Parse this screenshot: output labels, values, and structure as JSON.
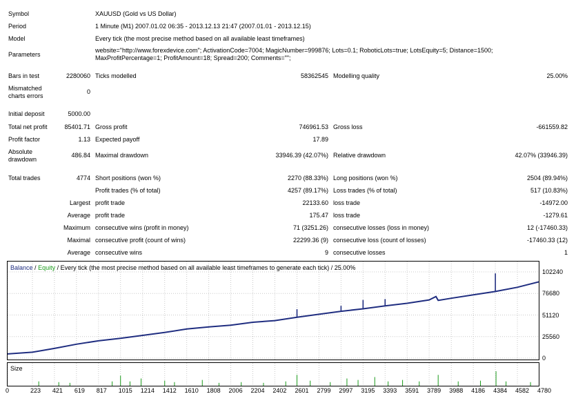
{
  "report": {
    "symbol_label": "Symbol",
    "symbol_value": "XAUUSD (Gold vs US Dollar)",
    "period_label": "Period",
    "period_value": "1 Minute (M1) 2007.01.02 06:35 - 2013.12.13 21:47 (2007.01.01 - 2013.12.15)",
    "model_label": "Model",
    "model_value": "Every tick (the most precise method based on all available least timeframes)",
    "parameters_label": "Parameters",
    "parameters_line1": "website=\"http://www.forexdevice.com\"; ActivationCode=7004; MagicNumber=999876; Lots=0.1; RoboticLots=true; LotsEquity=5; Distance=1500;",
    "parameters_line2": "MaxProfitPercentage=1; ProfitAmount=18; Spread=200; Comments=\"\";",
    "bars_label": "Bars in test",
    "bars_value": "2280060",
    "ticks_label": "Ticks modelled",
    "ticks_value": "58362545",
    "quality_label": "Modelling quality",
    "quality_value": "25.00%",
    "mismatch_label_1": "Mismatched",
    "mismatch_label_2": "charts errors",
    "mismatch_value": "0",
    "deposit_label": "Initial deposit",
    "deposit_value": "5000.00",
    "netprofit_label": "Total net profit",
    "netprofit_value": "85401.71",
    "grossprofit_label": "Gross profit",
    "grossprofit_value": "746961.53",
    "grossloss_label": "Gross loss",
    "grossloss_value": "-661559.82",
    "pf_label": "Profit factor",
    "pf_value": "1.13",
    "payoff_label": "Expected payoff",
    "payoff_value": "17.89",
    "absdd_label_1": "Absolute",
    "absdd_label_2": "drawdown",
    "absdd_value": "486.84",
    "maxdd_label": "Maximal drawdown",
    "maxdd_value": "33946.39 (42.07%)",
    "reldd_label": "Relative drawdown",
    "reldd_value": "42.07% (33946.39)",
    "trades_label": "Total trades",
    "trades_value": "4774",
    "short_label": "Short positions (won %)",
    "short_value": "2270 (88.33%)",
    "long_label": "Long positions (won %)",
    "long_value": "2504 (89.94%)",
    "ptrades_label": "Profit trades (% of total)",
    "ptrades_value": "4257 (89.17%)",
    "ltrades_label": "Loss trades (% of total)",
    "ltrades_value": "517 (10.83%)",
    "largest_label": "Largest",
    "largest_profit_label": "profit trade",
    "largest_profit_value": "22133.60",
    "largest_loss_label": "loss trade",
    "largest_loss_value": "-14972.00",
    "average_label": "Average",
    "average_profit_label": "profit trade",
    "average_profit_value": "175.47",
    "average_loss_label": "loss trade",
    "average_loss_value": "-1279.61",
    "maximum_label": "Maximum",
    "maxwins_label": "consecutive wins (profit in money)",
    "maxwins_value": "71 (3251.26)",
    "maxlosses_label": "consecutive losses (loss in money)",
    "maxlosses_value": "12 (-17460.33)",
    "maximal_label": "Maximal",
    "maxprofit_label": "consecutive profit (count of wins)",
    "maxprofit_value": "22299.36 (9)",
    "maxloss_label": "consecutive loss (count of losses)",
    "maxloss_value": "-17460.33 (12)",
    "avg2_label": "Average",
    "avgwins_label": "consecutive wins",
    "avgwins_value": "9",
    "avglosses_label": "consecutive losses",
    "avglosses_value": "1"
  },
  "chart_data": {
    "type": "line",
    "legend": {
      "balance": "Balance",
      "separator": "/",
      "equity": "Equity",
      "rest": "/ Every tick (the most precise method based on all available least timeframes to generate each tick) / 25.00%"
    },
    "colors": {
      "balance": "#1f2d80",
      "equity": "#1a9a1a",
      "size": "#1a9a1a",
      "grid": "#c8c8c8"
    },
    "y_ticks": [
      "102240",
      "76680",
      "51120",
      "25560",
      "0"
    ],
    "y_tick_values": [
      102240,
      76680,
      51120,
      25560,
      0
    ],
    "ylim": [
      0,
      102240
    ],
    "x_ticks": [
      "0",
      "223",
      "421",
      "619",
      "817",
      "1015",
      "1214",
      "1412",
      "1610",
      "1808",
      "2006",
      "2204",
      "2402",
      "2601",
      "2799",
      "2997",
      "3195",
      "3393",
      "3591",
      "3789",
      "3988",
      "4186",
      "4384",
      "4582",
      "4780"
    ],
    "xlim": [
      0,
      4774
    ],
    "balance_points": [
      [
        0,
        5000
      ],
      [
        223,
        7000
      ],
      [
        421,
        11500
      ],
      [
        619,
        16500
      ],
      [
        817,
        20500
      ],
      [
        1015,
        23500
      ],
      [
        1214,
        27000
      ],
      [
        1412,
        30500
      ],
      [
        1610,
        34500
      ],
      [
        1808,
        37000
      ],
      [
        2006,
        39000
      ],
      [
        2204,
        42500
      ],
      [
        2402,
        44500
      ],
      [
        2601,
        48500
      ],
      [
        2799,
        52000
      ],
      [
        2997,
        55500
      ],
      [
        3195,
        58500
      ],
      [
        3393,
        62000
      ],
      [
        3591,
        65000
      ],
      [
        3789,
        69000
      ],
      [
        3850,
        73000
      ],
      [
        3870,
        68500
      ],
      [
        3988,
        71000
      ],
      [
        4186,
        75000
      ],
      [
        4384,
        79000
      ],
      [
        4582,
        84000
      ],
      [
        4774,
        90400
      ]
    ],
    "spikes": [
      [
        2601,
        48500,
        58000
      ],
      [
        2997,
        55500,
        62000
      ],
      [
        3195,
        58500,
        69000
      ],
      [
        3393,
        62000,
        70000
      ],
      [
        4384,
        79000,
        100500
      ]
    ],
    "size_label": "Size",
    "size_bars": [
      [
        280,
        0.3
      ],
      [
        460,
        0.25
      ],
      [
        560,
        0.2
      ],
      [
        940,
        0.3
      ],
      [
        1015,
        0.7
      ],
      [
        1100,
        0.3
      ],
      [
        1200,
        0.5
      ],
      [
        1412,
        0.35
      ],
      [
        1500,
        0.25
      ],
      [
        1750,
        0.4
      ],
      [
        1900,
        0.2
      ],
      [
        2100,
        0.25
      ],
      [
        2300,
        0.2
      ],
      [
        2500,
        0.3
      ],
      [
        2601,
        0.75
      ],
      [
        2720,
        0.35
      ],
      [
        2900,
        0.25
      ],
      [
        3050,
        0.5
      ],
      [
        3150,
        0.4
      ],
      [
        3300,
        0.6
      ],
      [
        3420,
        0.3
      ],
      [
        3550,
        0.4
      ],
      [
        3700,
        0.3
      ],
      [
        3870,
        0.75
      ],
      [
        4050,
        0.3
      ],
      [
        4250,
        0.35
      ],
      [
        4390,
        1.0
      ],
      [
        4480,
        0.3
      ],
      [
        4700,
        0.25
      ]
    ]
  }
}
